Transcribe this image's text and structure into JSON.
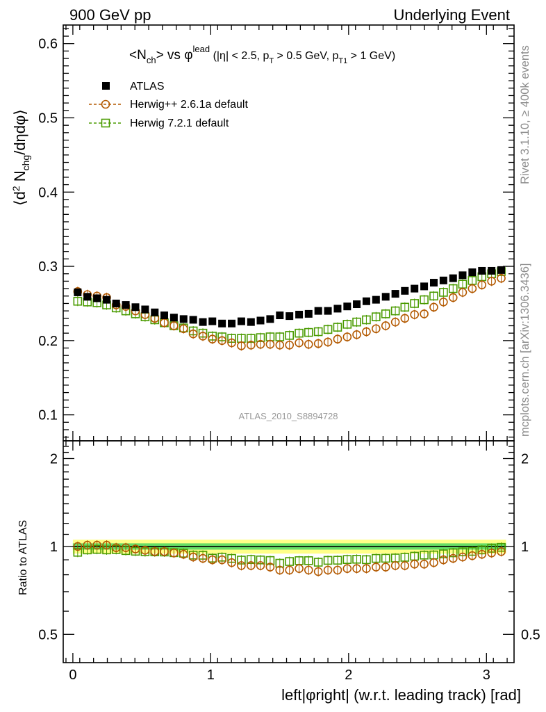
{
  "header": {
    "energy_label": "900 GeV pp",
    "process_label": "Underlying Event"
  },
  "side_labels": {
    "rivet": "Rivet 3.1.10, ≥ 400k events",
    "mcplots": "mcplots.cern.ch [arXiv:1306.3436]"
  },
  "chart_data": {
    "type": "scatter",
    "title_parts": {
      "n": "<N",
      "ch": "ch",
      "vs": "> vs φ",
      "lead": "lead",
      "c1": " (|η| < 2.5, p",
      "T": "T",
      "c2": " > 0.5 GeV, p",
      "T1": "T1",
      "c3": " > 1 GeV)"
    },
    "analysis_id": "ATLAS_2010_S8894728",
    "xlabel": "left|φright| (w.r.t. leading track) [rad]",
    "ylabel_parts": {
      "a": "⟨d",
      "sup": "2",
      "b": " N",
      "sub": "chg",
      "c": "/dηdφ⟩"
    },
    "ratio_ylabel": "Ratio to ATLAS",
    "xlim": [
      -0.07,
      3.2
    ],
    "ylim": [
      0.065,
      0.625
    ],
    "ratio_ylim": [
      0.4,
      2.3
    ],
    "x_ticks": [
      "0",
      "1",
      "2",
      "3"
    ],
    "y_ticks": [
      "0.1",
      "0.2",
      "0.3",
      "0.4",
      "0.5",
      "0.6"
    ],
    "ratio_y_ticks": [
      "0.5",
      "1",
      "2"
    ],
    "legend_position": "top-left",
    "x": [
      0.035,
      0.105,
      0.175,
      0.245,
      0.314,
      0.384,
      0.454,
      0.524,
      0.594,
      0.663,
      0.733,
      0.803,
      0.873,
      0.943,
      1.012,
      1.082,
      1.152,
      1.222,
      1.292,
      1.361,
      1.431,
      1.501,
      1.571,
      1.641,
      1.71,
      1.78,
      1.85,
      1.92,
      1.99,
      2.059,
      2.129,
      2.199,
      2.269,
      2.339,
      2.408,
      2.478,
      2.548,
      2.618,
      2.688,
      2.758,
      2.827,
      2.897,
      2.967,
      3.037,
      3.107
    ],
    "series": [
      {
        "name": "ATLAS",
        "marker": "filled-square",
        "color": "#000000",
        "values": [
          0.265,
          0.259,
          0.257,
          0.255,
          0.25,
          0.248,
          0.245,
          0.242,
          0.238,
          0.234,
          0.231,
          0.229,
          0.228,
          0.225,
          0.226,
          0.223,
          0.223,
          0.226,
          0.225,
          0.227,
          0.229,
          0.234,
          0.233,
          0.235,
          0.236,
          0.24,
          0.24,
          0.243,
          0.246,
          0.249,
          0.253,
          0.255,
          0.259,
          0.263,
          0.267,
          0.27,
          0.273,
          0.278,
          0.281,
          0.284,
          0.288,
          0.292,
          0.294,
          0.294,
          0.295
        ]
      },
      {
        "name": "Herwig++ 2.6.1a default",
        "marker": "open-circle",
        "color": "#b35900",
        "values": [
          0.266,
          0.262,
          0.26,
          0.258,
          0.248,
          0.246,
          0.24,
          0.235,
          0.23,
          0.224,
          0.22,
          0.216,
          0.209,
          0.206,
          0.202,
          0.2,
          0.197,
          0.193,
          0.194,
          0.195,
          0.195,
          0.194,
          0.194,
          0.197,
          0.195,
          0.196,
          0.198,
          0.202,
          0.205,
          0.208,
          0.212,
          0.216,
          0.22,
          0.225,
          0.23,
          0.235,
          0.236,
          0.245,
          0.252,
          0.258,
          0.265,
          0.27,
          0.275,
          0.28,
          0.284
        ]
      },
      {
        "name": "Herwig 7.2.1 default",
        "marker": "open-square",
        "color": "#4a9b00",
        "values": [
          0.253,
          0.252,
          0.251,
          0.248,
          0.244,
          0.24,
          0.236,
          0.232,
          0.228,
          0.224,
          0.22,
          0.217,
          0.213,
          0.21,
          0.206,
          0.205,
          0.203,
          0.203,
          0.203,
          0.204,
          0.205,
          0.205,
          0.207,
          0.21,
          0.211,
          0.212,
          0.215,
          0.218,
          0.222,
          0.225,
          0.228,
          0.232,
          0.236,
          0.24,
          0.245,
          0.25,
          0.255,
          0.26,
          0.265,
          0.27,
          0.276,
          0.281,
          0.286,
          0.29,
          0.293
        ]
      }
    ],
    "ratio_series": [
      {
        "name": "Herwig++ 2.6.1a default",
        "values": [
          1.0,
          1.01,
          1.01,
          1.01,
          0.99,
          0.99,
          0.98,
          0.97,
          0.96,
          0.96,
          0.95,
          0.94,
          0.92,
          0.91,
          0.9,
          0.9,
          0.88,
          0.86,
          0.86,
          0.86,
          0.85,
          0.83,
          0.83,
          0.84,
          0.83,
          0.82,
          0.83,
          0.83,
          0.84,
          0.84,
          0.84,
          0.85,
          0.85,
          0.86,
          0.86,
          0.87,
          0.87,
          0.88,
          0.9,
          0.91,
          0.92,
          0.93,
          0.94,
          0.95,
          0.96
        ]
      },
      {
        "name": "Herwig 7.2.1 default",
        "values": [
          0.955,
          0.973,
          0.977,
          0.973,
          0.976,
          0.968,
          0.963,
          0.959,
          0.958,
          0.957,
          0.952,
          0.948,
          0.934,
          0.933,
          0.912,
          0.919,
          0.91,
          0.898,
          0.902,
          0.899,
          0.895,
          0.876,
          0.888,
          0.894,
          0.894,
          0.883,
          0.896,
          0.897,
          0.902,
          0.904,
          0.901,
          0.91,
          0.911,
          0.913,
          0.918,
          0.926,
          0.934,
          0.935,
          0.943,
          0.951,
          0.958,
          0.962,
          0.973,
          0.986,
          0.993
        ]
      }
    ],
    "band": {
      "stat_fraction": 0.025,
      "total_fraction": 0.055,
      "stat_color": "#66dd66",
      "total_color": "#ffff88"
    }
  }
}
